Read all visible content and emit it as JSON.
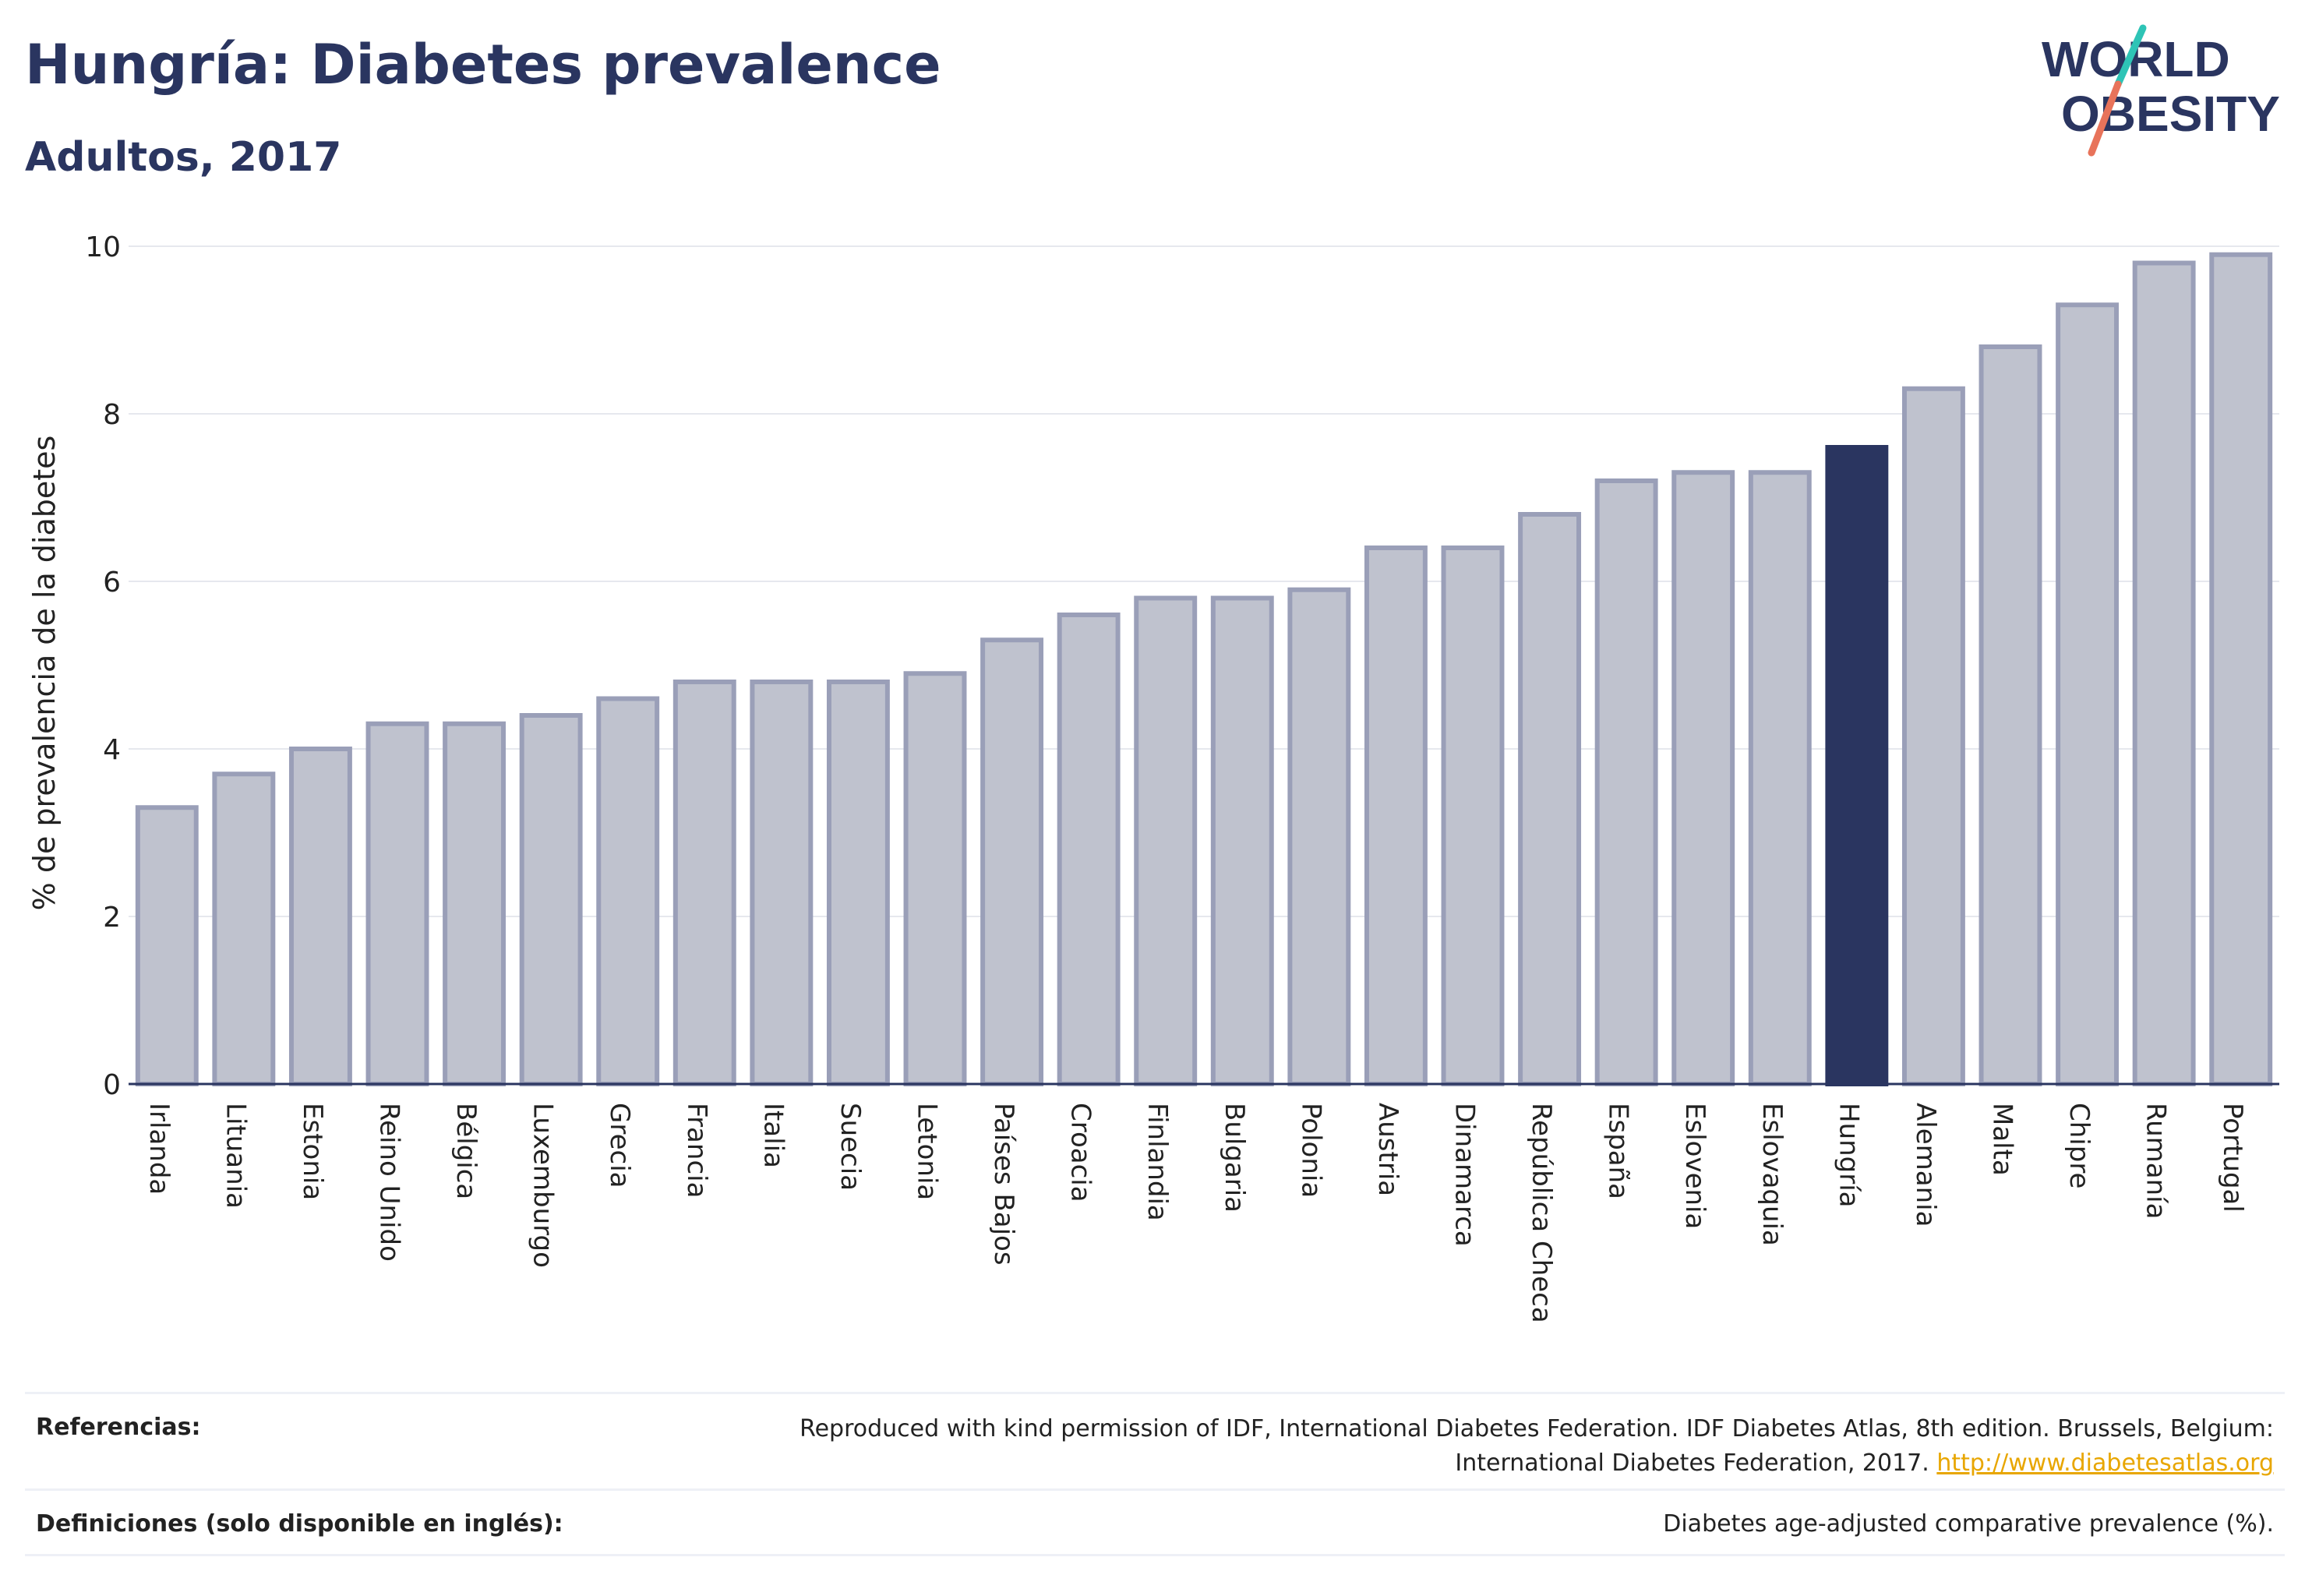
{
  "header": {
    "title": "Hungría: Diabetes prevalence",
    "subtitle": "Adultos, 2017"
  },
  "logo": {
    "line1": "WORLD",
    "line2": "OBESITY"
  },
  "colors": {
    "bar": "#bfc2ce",
    "bar_border": "#9a9fb8",
    "highlight": "#2a3560",
    "grid": "#e6e8ee",
    "link": "#e8a600",
    "logo_teal": "#2ec4b6",
    "logo_coral": "#e8735a"
  },
  "chart_data": {
    "type": "bar",
    "title": "Hungría: Diabetes prevalence",
    "subtitle": "Adultos, 2017",
    "ylabel": "% de prevalencia de la diabetes",
    "xlabel": "",
    "ylim": [
      0,
      10
    ],
    "yticks": [
      0,
      2,
      4,
      6,
      8,
      10
    ],
    "grid": true,
    "highlight": "Hungría",
    "categories": [
      "Irlanda",
      "Lituania",
      "Estonia",
      "Reino Unido",
      "Bélgica",
      "Luxemburgo",
      "Grecia",
      "Francia",
      "Italia",
      "Suecia",
      "Letonia",
      "Países Bajos",
      "Croacia",
      "Finlandia",
      "Bulgaria",
      "Polonia",
      "Austria",
      "Dinamarca",
      "República Checa",
      "España",
      "Eslovenia",
      "Eslovaquia",
      "Hungría",
      "Alemania",
      "Malta",
      "Chipre",
      "Rumanía",
      "Portugal"
    ],
    "values": [
      3.3,
      3.7,
      4.0,
      4.3,
      4.3,
      4.4,
      4.6,
      4.8,
      4.8,
      4.8,
      4.9,
      5.3,
      5.6,
      5.8,
      5.8,
      5.9,
      6.4,
      6.4,
      6.8,
      7.2,
      7.3,
      7.3,
      7.6,
      8.3,
      8.8,
      9.3,
      9.8,
      9.9
    ]
  },
  "footer": {
    "references_label": "Referencias:",
    "references_text_1": "Reproduced with kind permission of IDF, International Diabetes Federation. IDF Diabetes Atlas, 8th edition. Brussels, Belgium:",
    "references_text_2": "International Diabetes Federation, 2017.",
    "references_link": "http://www.diabetesatlas.org",
    "definitions_label": "Definiciones (solo disponible en inglés):",
    "definitions_text": "Diabetes age-adjusted comparative prevalence (%)."
  }
}
